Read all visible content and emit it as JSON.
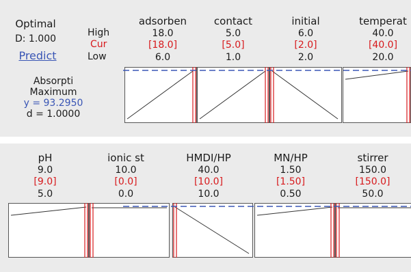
{
  "summary": {
    "title": "Optimal",
    "desirability": "D: 1.000",
    "predict_link": "Predict",
    "response_name": "Absorpti",
    "goal": "Maximum",
    "y_value": "y = 93.2950",
    "d_value": "d = 1.0000"
  },
  "row_labels": {
    "high": "High",
    "cur": "Cur",
    "low": "Low"
  },
  "top_factors": [
    {
      "name": "adsorben",
      "high": "18.0",
      "cur": "[18.0]",
      "low": "6.0",
      "trend": "up"
    },
    {
      "name": "contact",
      "high": "5.0",
      "cur": "[5.0]",
      "low": "1.0",
      "trend": "up"
    },
    {
      "name": "initial",
      "high": "6.0",
      "cur": "[2.0]",
      "low": "2.0",
      "trend": "down"
    },
    {
      "name": "temperat",
      "high": "40.0",
      "cur": "[40.0]",
      "low": "20.0",
      "trend": "flat-up"
    }
  ],
  "bottom_factors": [
    {
      "name": "pH",
      "high": "9.0",
      "cur": "[9.0]",
      "low": "5.0",
      "trend": "flat-up"
    },
    {
      "name": "ionic st",
      "high": "10.0",
      "cur": "[0.0]",
      "low": "0.0",
      "trend": "flat"
    },
    {
      "name": "HMDI/HP",
      "high": "40.0",
      "cur": "[10.0]",
      "low": "10.0",
      "trend": "down"
    },
    {
      "name": "MN/HP",
      "high": "1.50",
      "cur": "[1.50]",
      "low": "0.50",
      "trend": "flat-up"
    },
    {
      "name": "stirrer",
      "high": "150.0",
      "cur": "[150.0]",
      "low": "50.0",
      "trend": "flat"
    }
  ],
  "colors": {
    "panel_bg": "#ebebeb",
    "current_line": "#d7191c",
    "optimum_dashed_line": "#3a56b5",
    "curve": "#333333",
    "current_text": "#d7191c",
    "link_text": "#3a56b5"
  }
}
